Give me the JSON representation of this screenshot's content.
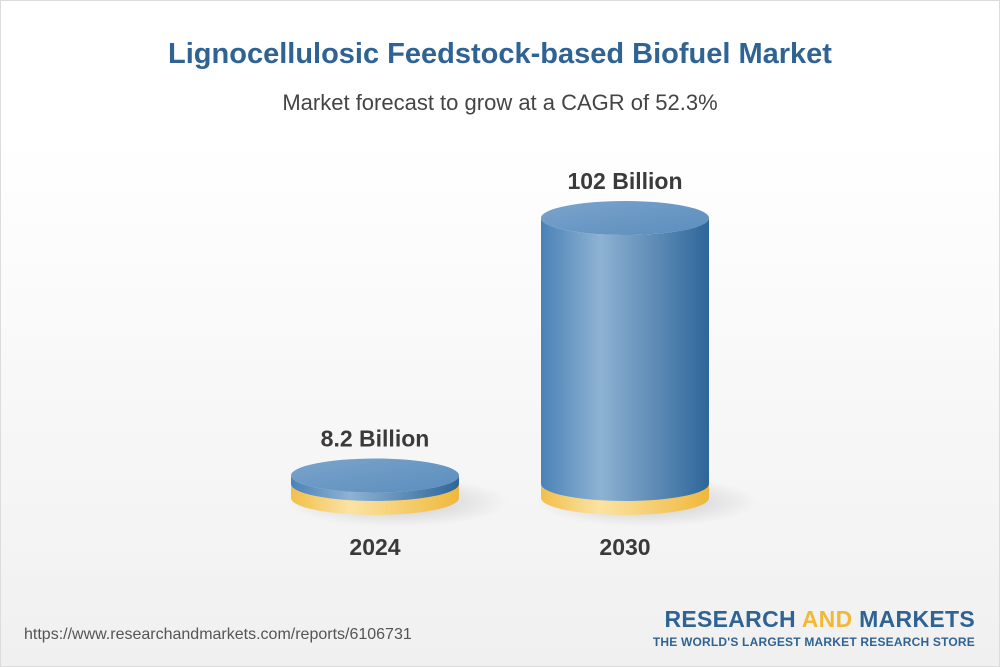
{
  "header": {
    "title": "Lignocellulosic Feedstock-based Biofuel Market",
    "subtitle": "Market forecast to grow at a CAGR of 52.3%"
  },
  "chart_data": {
    "type": "bar",
    "categories": [
      "2024",
      "2030"
    ],
    "values": [
      8.2,
      102
    ],
    "value_labels": [
      "8.2 Billion",
      "102 Billion"
    ],
    "unit": "Billion",
    "cagr": "52.3%",
    "title": "Lignocellulosic Feedstock-based Biofuel Market",
    "subtitle": "Market forecast to grow at a CAGR of 52.3%",
    "grid": false,
    "legend": "none"
  },
  "colors": {
    "title": "#2f6393",
    "gold": "#f2c14e",
    "blue": "#4f86b8"
  },
  "footer": {
    "url": "https://www.researchandmarkets.com/reports/6106731",
    "brand_part1": "RESEARCH ",
    "brand_part2": "AND",
    "brand_part3": " MARKETS",
    "tagline": "THE WORLD'S LARGEST MARKET RESEARCH STORE"
  }
}
